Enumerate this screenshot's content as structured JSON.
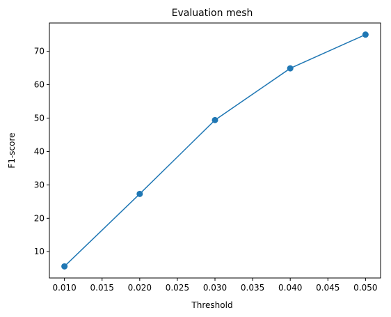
{
  "chart_data": {
    "type": "line",
    "title": "Evaluation mesh",
    "xlabel": "Threshold",
    "ylabel": "F1-score",
    "x": [
      0.01,
      0.02,
      0.03,
      0.04,
      0.05
    ],
    "series": [
      {
        "values": [
          5.6,
          27.3,
          49.4,
          64.9,
          75.0
        ],
        "color": "#1f77b4",
        "marker": "circle"
      }
    ],
    "xticks": [
      "0.010",
      "0.015",
      "0.020",
      "0.025",
      "0.030",
      "0.035",
      "0.040",
      "0.045",
      "0.050"
    ],
    "xtick_values": [
      0.01,
      0.015,
      0.02,
      0.025,
      0.03,
      0.035,
      0.04,
      0.045,
      0.05
    ],
    "yticks": [
      "10",
      "20",
      "30",
      "40",
      "50",
      "60",
      "70"
    ],
    "ytick_values": [
      10,
      20,
      30,
      40,
      50,
      60,
      70
    ],
    "xlim": [
      0.008,
      0.052
    ],
    "ylim": [
      2.125,
      78.475
    ],
    "grid": false,
    "legend": "none"
  }
}
